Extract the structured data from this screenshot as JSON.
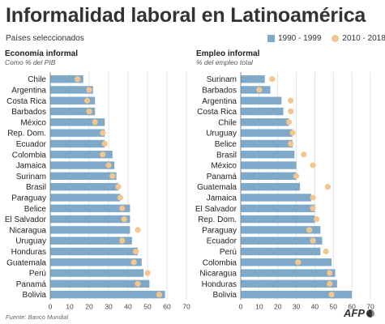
{
  "title": "Informalidad laboral en Latinoamérica",
  "subtitle": "Países seleccionados",
  "legend": {
    "series1": "1990 - 1999",
    "series2": "2010 - 2018"
  },
  "colors": {
    "bar": "#7fa9c9",
    "dot": "#f3c68e",
    "grid": "#d9d9d9",
    "axis": "#777777",
    "title": "#333333"
  },
  "source": "Fuente: Banco Mundial",
  "logo": "AFP",
  "chart_data": [
    {
      "type": "bar",
      "title": "Economía informal",
      "subtitle": "Como % del PIB",
      "xlim": [
        0,
        70
      ],
      "ticks": [
        0,
        10,
        20,
        30,
        40,
        50,
        60,
        70
      ],
      "grid": true,
      "categories": [
        "Chile",
        "Argentina",
        "Costa Rica",
        "Barbados",
        "México",
        "Rep. Dom.",
        "Ecuador",
        "Colombia",
        "Jamaica",
        "Surinam",
        "Brasil",
        "Paraguay",
        "Belice",
        "El Salvador",
        "Nicaragua",
        "Uruguay",
        "Honduras",
        "Guatemala",
        "Perú",
        "Panamá",
        "Bolivia"
      ],
      "series": [
        {
          "name": "1990 - 1999",
          "style": "bar",
          "values": [
            17,
            22,
            23,
            23,
            28,
            28,
            28,
            32,
            33,
            34,
            35,
            36,
            41,
            41,
            41,
            42,
            45,
            47,
            48,
            51,
            59
          ]
        },
        {
          "name": "2010 - 2018",
          "style": "dot",
          "values": [
            14,
            20,
            19,
            20,
            23,
            27,
            28,
            27,
            30,
            32,
            35,
            36,
            37,
            38,
            45,
            37,
            44,
            43,
            50,
            45,
            56
          ]
        }
      ]
    },
    {
      "type": "bar",
      "title": "Empleo informal",
      "subtitle": "% del empleo total",
      "xlim": [
        0,
        70
      ],
      "ticks": [
        0,
        10,
        20,
        30,
        40,
        50,
        60,
        70
      ],
      "grid": true,
      "categories": [
        "Surinam",
        "Barbados",
        "Argentina",
        "Costa Rica",
        "Chile",
        "Uruguay",
        "Belice",
        "Brasil",
        "México",
        "Panamá",
        "Guatemala",
        "Jamaica",
        "El Salvador",
        "Rep. Dom.",
        "Paraguay",
        "Ecuador",
        "Perú",
        "Colombia",
        "Nicaragua",
        "Honduras",
        "Bolivia"
      ],
      "series": [
        {
          "name": "1990 - 1999",
          "style": "bar",
          "values": [
            13,
            16,
            22,
            23,
            26,
            28,
            28,
            29,
            30,
            30,
            32,
            38,
            40,
            40,
            43,
            44,
            43,
            49,
            51,
            52,
            60
          ]
        },
        {
          "name": "2010 - 2018",
          "style": "dot",
          "values": [
            17,
            10,
            27,
            27,
            26,
            28,
            27,
            34,
            39,
            30,
            47,
            39,
            39,
            41,
            37,
            39,
            46,
            31,
            48,
            48,
            49
          ]
        }
      ]
    }
  ]
}
